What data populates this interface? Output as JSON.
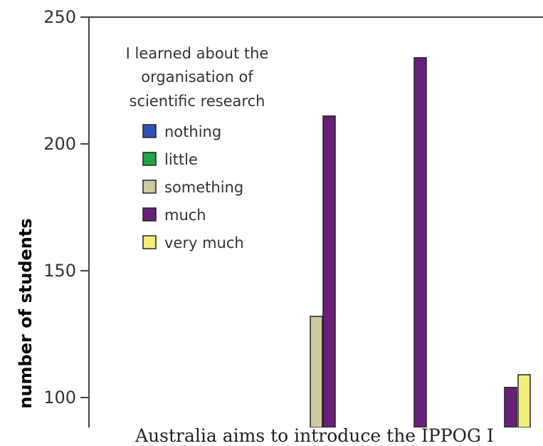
{
  "chart_data": {
    "type": "bar",
    "ylabel": "number of students",
    "xlabel": "",
    "ylim": [
      88,
      250
    ],
    "yticks": [
      250,
      200,
      150,
      100
    ],
    "grid": false,
    "legend_position": "top-left",
    "legend_title": [
      "I learned about the",
      "organisation of",
      "scientific research"
    ],
    "series": [
      {
        "name": "nothing",
        "color": "#2e55b4"
      },
      {
        "name": "little",
        "color": "#22a24a"
      },
      {
        "name": "something",
        "color": "#cfc9a0"
      },
      {
        "name": "much",
        "color": "#6a1f7a"
      },
      {
        "name": "very much",
        "color": "#f2ee7a"
      }
    ],
    "bars": [
      {
        "series": "something",
        "value": 132
      },
      {
        "series": "much",
        "value": 211
      },
      {
        "series": "much",
        "value": 234
      },
      {
        "series": "much",
        "value": 104
      },
      {
        "series": "very much",
        "value": 109
      }
    ]
  },
  "caption": "Australia aims to introduce the IPPOG I"
}
